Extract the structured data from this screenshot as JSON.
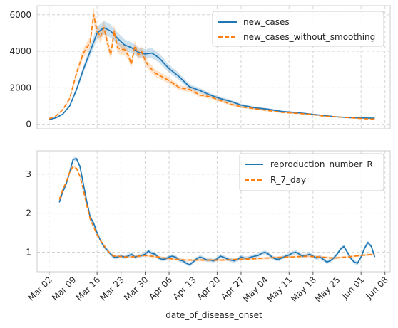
{
  "chart_data": [
    {
      "type": "line",
      "xlabel": "",
      "ylabel": "",
      "ylim": [
        -250,
        6500
      ],
      "yticks": [
        0,
        2000,
        4000,
        6000
      ],
      "grid": true,
      "legend_position": "top-right",
      "series": [
        {
          "name": "new_cases",
          "color": "#1f77b4",
          "style": "solid",
          "x": [
            "2020-03-02",
            "2020-03-04",
            "2020-03-06",
            "2020-03-08",
            "2020-03-10",
            "2020-03-12",
            "2020-03-14",
            "2020-03-16",
            "2020-03-18",
            "2020-03-20",
            "2020-03-22",
            "2020-03-24",
            "2020-03-26",
            "2020-03-28",
            "2020-03-30",
            "2020-04-01",
            "2020-04-03",
            "2020-04-06",
            "2020-04-09",
            "2020-04-12",
            "2020-04-15",
            "2020-04-18",
            "2020-04-21",
            "2020-04-24",
            "2020-04-27",
            "2020-05-01",
            "2020-05-05",
            "2020-05-09",
            "2020-05-13",
            "2020-05-17",
            "2020-05-21",
            "2020-05-25",
            "2020-05-29",
            "2020-06-02",
            "2020-06-05"
          ],
          "values": [
            250,
            350,
            550,
            1000,
            1900,
            3000,
            4000,
            5000,
            5300,
            5100,
            4700,
            4350,
            4200,
            3950,
            3850,
            3900,
            3650,
            3050,
            2600,
            2050,
            1850,
            1600,
            1400,
            1250,
            1050,
            900,
            820,
            700,
            640,
            560,
            480,
            400,
            360,
            340,
            330
          ]
        },
        {
          "name": "new_cases_without_smoothing",
          "color": "#ff7f0e",
          "style": "dashed",
          "x": [
            "2020-03-02",
            "2020-03-04",
            "2020-03-06",
            "2020-03-08",
            "2020-03-10",
            "2020-03-12",
            "2020-03-14",
            "2020-03-15",
            "2020-03-16",
            "2020-03-17",
            "2020-03-18",
            "2020-03-19",
            "2020-03-20",
            "2020-03-21",
            "2020-03-22",
            "2020-03-23",
            "2020-03-24",
            "2020-03-25",
            "2020-03-26",
            "2020-03-27",
            "2020-03-28",
            "2020-03-29",
            "2020-03-30",
            "2020-03-31",
            "2020-04-01",
            "2020-04-02",
            "2020-04-04",
            "2020-04-06",
            "2020-04-09",
            "2020-04-12",
            "2020-04-15",
            "2020-04-18",
            "2020-04-21",
            "2020-04-24",
            "2020-04-27",
            "2020-05-01",
            "2020-05-05",
            "2020-05-09",
            "2020-05-13",
            "2020-05-17",
            "2020-05-21",
            "2020-05-25",
            "2020-05-29",
            "2020-06-02",
            "2020-06-05"
          ],
          "values": [
            300,
            450,
            800,
            1400,
            2800,
            3900,
            4500,
            6000,
            5100,
            4800,
            5300,
            4500,
            3800,
            5100,
            4200,
            4100,
            4100,
            3800,
            3300,
            4300,
            3800,
            4000,
            3500,
            3200,
            3000,
            2800,
            2600,
            2400,
            2000,
            1900,
            1600,
            1500,
            1300,
            1100,
            950,
            850,
            750,
            650,
            600,
            550,
            450,
            400,
            350,
            300,
            280
          ]
        }
      ]
    },
    {
      "type": "line",
      "xlabel": "date_of_disease_onset",
      "ylabel": "",
      "ylim": [
        0.5,
        3.6
      ],
      "yticks": [
        1,
        2,
        3
      ],
      "xticks": [
        "Mar 02",
        "Mar 09",
        "Mar 16",
        "Mar 23",
        "Mar 30",
        "Apr 06",
        "Apr 13",
        "Apr 20",
        "Apr 27",
        "May 04",
        "May 11",
        "May 18",
        "May 25",
        "Jun 01",
        "Jun 08"
      ],
      "grid": true,
      "legend_position": "top-right",
      "series": [
        {
          "name": "reproduction_number_R",
          "color": "#1f77b4",
          "style": "solid",
          "x": [
            "2020-03-05",
            "2020-03-06",
            "2020-03-07",
            "2020-03-08",
            "2020-03-09",
            "2020-03-10",
            "2020-03-11",
            "2020-03-12",
            "2020-03-13",
            "2020-03-14",
            "2020-03-15",
            "2020-03-16",
            "2020-03-17",
            "2020-03-18",
            "2020-03-19",
            "2020-03-20",
            "2020-03-21",
            "2020-03-22",
            "2020-03-23",
            "2020-03-24",
            "2020-03-25",
            "2020-03-26",
            "2020-03-27",
            "2020-03-28",
            "2020-03-29",
            "2020-03-30",
            "2020-03-31",
            "2020-04-01",
            "2020-04-02",
            "2020-04-03",
            "2020-04-04",
            "2020-04-05",
            "2020-04-06",
            "2020-04-07",
            "2020-04-08",
            "2020-04-09",
            "2020-04-10",
            "2020-04-11",
            "2020-04-12",
            "2020-04-13",
            "2020-04-14",
            "2020-04-15",
            "2020-04-16",
            "2020-04-17",
            "2020-04-18",
            "2020-04-19",
            "2020-04-20",
            "2020-04-21",
            "2020-04-22",
            "2020-04-23",
            "2020-04-24",
            "2020-04-25",
            "2020-04-26",
            "2020-04-27",
            "2020-04-28",
            "2020-04-29",
            "2020-04-30",
            "2020-05-01",
            "2020-05-02",
            "2020-05-03",
            "2020-05-04",
            "2020-05-05",
            "2020-05-06",
            "2020-05-07",
            "2020-05-08",
            "2020-05-09",
            "2020-05-10",
            "2020-05-11",
            "2020-05-12",
            "2020-05-13",
            "2020-05-14",
            "2020-05-15",
            "2020-05-16",
            "2020-05-17",
            "2020-05-18",
            "2020-05-19",
            "2020-05-20",
            "2020-05-21",
            "2020-05-22",
            "2020-05-23",
            "2020-05-24",
            "2020-05-25",
            "2020-05-26",
            "2020-05-27",
            "2020-05-28",
            "2020-05-29",
            "2020-05-30",
            "2020-05-31",
            "2020-06-01",
            "2020-06-02",
            "2020-06-03",
            "2020-06-04",
            "2020-06-05"
          ],
          "values": [
            2.28,
            2.55,
            2.75,
            3.05,
            3.38,
            3.4,
            3.2,
            2.75,
            2.3,
            1.9,
            1.75,
            1.5,
            1.3,
            1.15,
            1.05,
            0.95,
            0.87,
            0.88,
            0.9,
            0.88,
            0.9,
            0.95,
            0.88,
            0.9,
            0.92,
            0.95,
            1.03,
            0.97,
            0.95,
            0.85,
            0.82,
            0.83,
            0.88,
            0.9,
            0.87,
            0.8,
            0.78,
            0.72,
            0.68,
            0.75,
            0.83,
            0.88,
            0.85,
            0.8,
            0.8,
            0.78,
            0.83,
            0.9,
            0.87,
            0.83,
            0.8,
            0.78,
            0.82,
            0.88,
            0.85,
            0.85,
            0.88,
            0.9,
            0.92,
            0.97,
            1.0,
            0.95,
            0.88,
            0.83,
            0.82,
            0.86,
            0.9,
            0.93,
            0.98,
            1.0,
            0.95,
            0.9,
            0.92,
            0.95,
            0.9,
            0.85,
            0.88,
            0.82,
            0.75,
            0.78,
            0.85,
            0.95,
            1.08,
            1.15,
            1.0,
            0.85,
            0.75,
            0.72,
            0.88,
            1.1,
            1.25,
            1.15,
            0.88
          ]
        },
        {
          "name": "R_7_day",
          "color": "#ff7f0e",
          "style": "dashed",
          "x": [
            "2020-03-05",
            "2020-03-06",
            "2020-03-07",
            "2020-03-08",
            "2020-03-09",
            "2020-03-10",
            "2020-03-11",
            "2020-03-12",
            "2020-03-13",
            "2020-03-14",
            "2020-03-15",
            "2020-03-16",
            "2020-03-17",
            "2020-03-18",
            "2020-03-19",
            "2020-03-20",
            "2020-03-21",
            "2020-03-22",
            "2020-03-24",
            "2020-03-26",
            "2020-03-28",
            "2020-03-30",
            "2020-04-01",
            "2020-04-03",
            "2020-04-05",
            "2020-04-08",
            "2020-04-11",
            "2020-04-14",
            "2020-04-18",
            "2020-04-22",
            "2020-04-26",
            "2020-04-30",
            "2020-05-04",
            "2020-05-08",
            "2020-05-12",
            "2020-05-16",
            "2020-05-20",
            "2020-05-24",
            "2020-05-28",
            "2020-06-01",
            "2020-06-05"
          ],
          "values": [
            2.35,
            2.6,
            2.8,
            3.05,
            3.2,
            3.15,
            2.95,
            2.6,
            2.2,
            1.85,
            1.65,
            1.45,
            1.3,
            1.18,
            1.05,
            0.95,
            0.9,
            0.9,
            0.88,
            0.88,
            0.9,
            0.92,
            0.9,
            0.88,
            0.85,
            0.82,
            0.8,
            0.8,
            0.8,
            0.8,
            0.82,
            0.83,
            0.85,
            0.87,
            0.88,
            0.9,
            0.88,
            0.85,
            0.88,
            0.92,
            0.95
          ]
        }
      ]
    }
  ]
}
